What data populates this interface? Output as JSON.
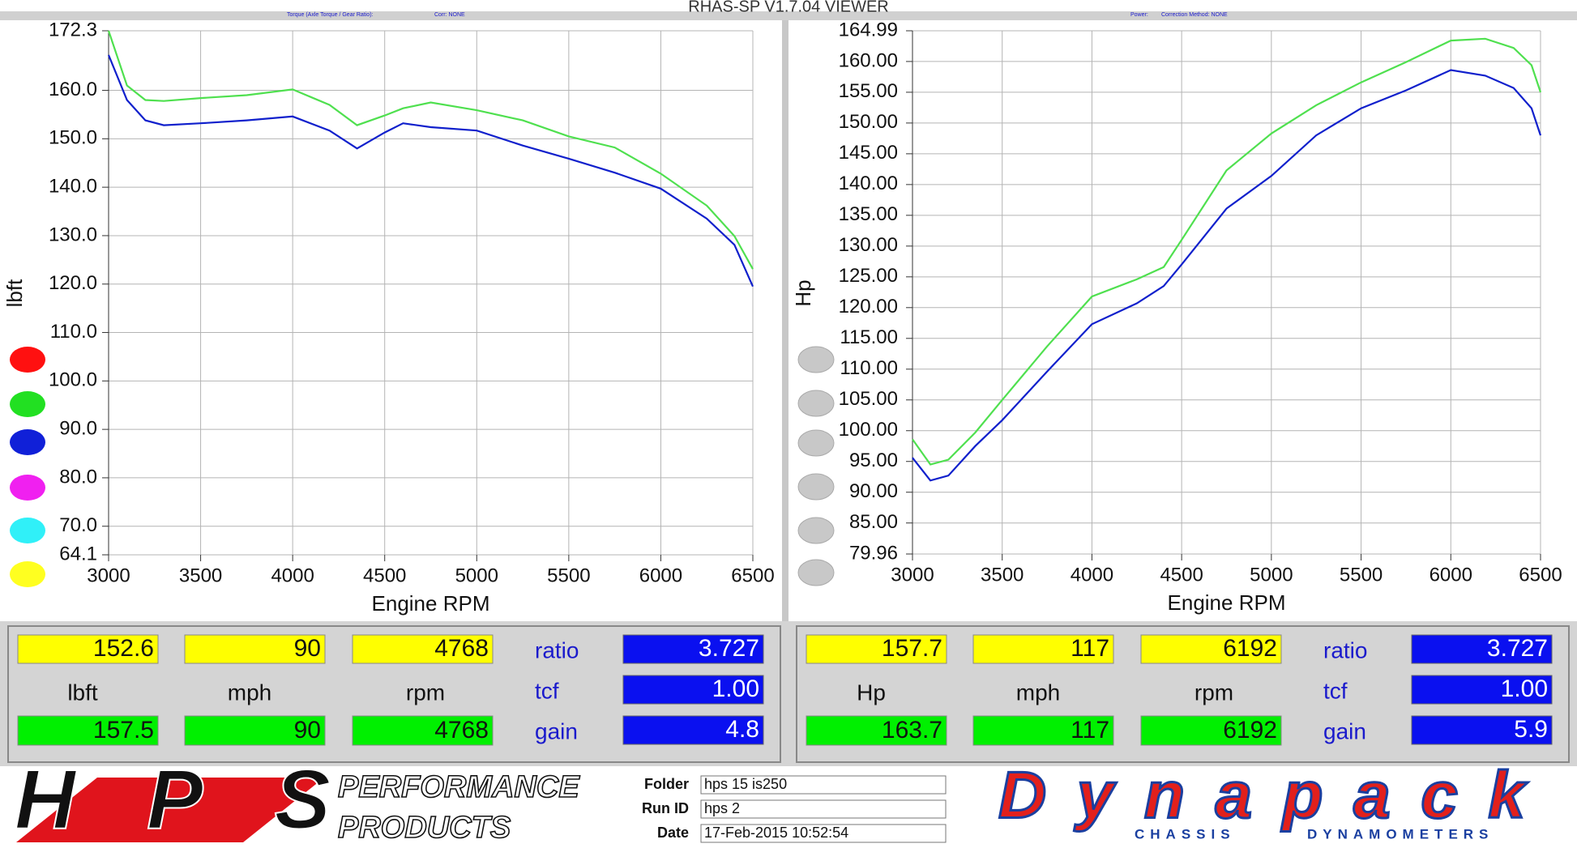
{
  "title": "RHAS-SP V1.7.04  VIEWER",
  "chart_data": [
    {
      "type": "line",
      "subtitle": "Torque (Axle Torque / Gear Ratio):",
      "correction": "Corr: NONE",
      "x_label": "Engine RPM",
      "y_label": "lbft",
      "grid": true,
      "xlim": [
        3000,
        6500
      ],
      "xticks": [
        3000,
        3500,
        4000,
        4500,
        5000,
        5500,
        6000,
        6500
      ],
      "ylim": [
        64.1,
        172.3
      ],
      "yticks": [
        64.1,
        {
          "value": 70,
          "label": "70.0"
        },
        {
          "value": 80,
          "label": "80.0"
        },
        {
          "value": 90,
          "label": "90.0"
        },
        {
          "value": 100,
          "label": "100.0"
        },
        {
          "value": 110,
          "label": "110.0"
        },
        {
          "value": 120,
          "label": "120.0"
        },
        {
          "value": 130,
          "label": "130.0"
        },
        {
          "value": 140,
          "label": "140.0"
        },
        {
          "value": 150,
          "label": "150.0"
        },
        {
          "value": 160,
          "label": "160.0"
        },
        172.3
      ],
      "x": [
        3000,
        3100,
        3200,
        3300,
        3500,
        3750,
        4000,
        4200,
        4350,
        4500,
        4600,
        4750,
        5000,
        5250,
        5500,
        5750,
        6000,
        6250,
        6400,
        6500
      ],
      "series": [
        {
          "color": "#4fe04f",
          "values": [
            172.3,
            161.0,
            158.0,
            157.8,
            158.4,
            159.0,
            160.2,
            157.0,
            152.8,
            154.8,
            156.3,
            157.5,
            155.9,
            153.8,
            150.5,
            148.2,
            142.8,
            136.2,
            129.9,
            123.1
          ]
        },
        {
          "color": "#1020cc",
          "values": [
            167.3,
            158.0,
            153.8,
            152.8,
            153.2,
            153.8,
            154.6,
            151.7,
            148.0,
            151.3,
            153.2,
            152.4,
            151.7,
            148.6,
            145.9,
            143.0,
            139.7,
            133.5,
            128.1,
            119.5
          ]
        }
      ]
    },
    {
      "type": "line",
      "subtitle": "Power:",
      "correction": "Correction Method: NONE",
      "x_label": "Engine RPM",
      "y_label": "Hp",
      "grid": true,
      "xlim": [
        3000,
        6500
      ],
      "xticks": [
        3000,
        3500,
        4000,
        4500,
        5000,
        5500,
        6000,
        6500
      ],
      "ylim": [
        79.96,
        164.99
      ],
      "yticks": [
        79.96,
        {
          "value": 85,
          "label": "85.00"
        },
        {
          "value": 90,
          "label": "90.00"
        },
        {
          "value": 95,
          "label": "95.00"
        },
        {
          "value": 100,
          "label": "100.00"
        },
        {
          "value": 105,
          "label": "105.00"
        },
        {
          "value": 110,
          "label": "110.00"
        },
        {
          "value": 115,
          "label": "115.00"
        },
        {
          "value": 120,
          "label": "120.00"
        },
        {
          "value": 125,
          "label": "125.00"
        },
        {
          "value": 130,
          "label": "130.00"
        },
        {
          "value": 135,
          "label": "135.00"
        },
        {
          "value": 140,
          "label": "140.00"
        },
        {
          "value": 145,
          "label": "145.00"
        },
        {
          "value": 150,
          "label": "150.00"
        },
        {
          "value": 155,
          "label": "155.00"
        },
        {
          "value": 160,
          "label": "160.00"
        },
        164.99
      ],
      "x": [
        3000,
        3100,
        3200,
        3350,
        3500,
        3750,
        4000,
        4250,
        4400,
        4500,
        4750,
        5000,
        5250,
        5500,
        5750,
        6000,
        6192,
        6350,
        6450,
        6500
      ],
      "series": [
        {
          "color": "#4fe04f",
          "values": [
            98.6,
            94.5,
            95.3,
            99.7,
            105.0,
            113.7,
            121.8,
            124.6,
            126.6,
            131.0,
            142.3,
            148.3,
            152.9,
            156.6,
            159.9,
            163.4,
            163.7,
            162.2,
            159.4,
            155.0
          ]
        },
        {
          "color": "#1020cc",
          "values": [
            95.6,
            91.9,
            92.7,
            97.5,
            101.7,
            109.6,
            117.3,
            120.7,
            123.5,
            127.0,
            136.1,
            141.4,
            148.0,
            152.4,
            155.3,
            158.6,
            157.7,
            155.7,
            152.4,
            148.0
          ]
        }
      ]
    }
  ],
  "readouts": [
    {
      "primary": [
        "152.6",
        "90",
        "4768"
      ],
      "units": [
        "lbft",
        "mph",
        "rpm"
      ],
      "secondary": [
        "157.5",
        "90",
        "4768"
      ],
      "labels": [
        "ratio",
        "tcf",
        "gain"
      ],
      "values": [
        "3.727",
        "1.00",
        "4.8"
      ]
    },
    {
      "primary": [
        "157.7",
        "117",
        "6192"
      ],
      "units": [
        "Hp",
        "mph",
        "rpm"
      ],
      "secondary": [
        "163.7",
        "117",
        "6192"
      ],
      "labels": [
        "ratio",
        "tcf",
        "gain"
      ],
      "values": [
        "3.727",
        "1.00",
        "5.9"
      ]
    }
  ],
  "footer": {
    "hps": {
      "logo": "HPS",
      "line1": "PERFORMANCE",
      "line2": "PRODUCTS"
    },
    "info": [
      {
        "label": "Folder",
        "value": "hps 15 is250"
      },
      {
        "label": "Run ID",
        "value": "hps 2"
      },
      {
        "label": "Date",
        "value": "17-Feb-2015   10:52:54"
      }
    ],
    "dynapack": {
      "logo": "Dynapack",
      "line1": "CHASSIS",
      "line2": "DYNAMOMETERS"
    }
  }
}
